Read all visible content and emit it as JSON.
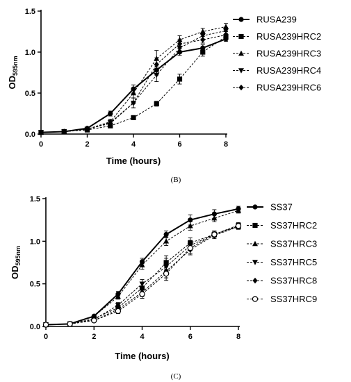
{
  "chart_data": [
    {
      "type": "line",
      "panel_label": "(B)",
      "xlabel": "Time (hours)",
      "ylabel_main": "OD",
      "ylabel_sub": "595nm",
      "xlim": [
        0,
        8
      ],
      "ylim": [
        0,
        1.5
      ],
      "xticks": [
        0,
        2,
        4,
        6,
        8
      ],
      "yticks": [
        0.0,
        0.5,
        1.0,
        1.5
      ],
      "ytick_labels": [
        "0.0",
        "0.5",
        "1.0",
        "1.5"
      ],
      "legend_position": "right",
      "x": [
        0,
        1,
        2,
        3,
        4,
        5,
        6,
        7,
        8
      ],
      "series": [
        {
          "name": "RUSA239",
          "marker": "circle",
          "dash": "solid",
          "width": 2,
          "values": [
            0.02,
            0.03,
            0.07,
            0.25,
            0.55,
            0.78,
            1.0,
            1.05,
            1.16
          ],
          "errors": [
            0.01,
            0.01,
            0.01,
            0.03,
            0.05,
            0.06,
            0.04,
            0.04,
            0.03
          ]
        },
        {
          "name": "RUSA239HRC2",
          "marker": "square",
          "dash": "dashed",
          "width": 1,
          "values": [
            0.02,
            0.03,
            0.05,
            0.1,
            0.2,
            0.37,
            0.67,
            1.0,
            1.19
          ],
          "errors": [
            0.01,
            0.01,
            0.01,
            0.02,
            0.02,
            0.03,
            0.06,
            0.05,
            0.04
          ]
        },
        {
          "name": "RUSA239HRC3",
          "marker": "triangle-up",
          "dash": "dashed",
          "width": 1,
          "values": [
            0.02,
            0.03,
            0.06,
            0.15,
            0.5,
            0.92,
            1.15,
            1.25,
            1.31
          ],
          "errors": [
            0.01,
            0.01,
            0.01,
            0.03,
            0.06,
            0.1,
            0.05,
            0.04,
            0.04
          ]
        },
        {
          "name": "RUSA239HRC4",
          "marker": "triangle-down",
          "dash": "dashed",
          "width": 1,
          "values": [
            0.02,
            0.03,
            0.06,
            0.14,
            0.38,
            0.72,
            1.05,
            1.2,
            1.26
          ],
          "errors": [
            0.01,
            0.01,
            0.01,
            0.03,
            0.06,
            0.08,
            0.05,
            0.04,
            0.04
          ]
        },
        {
          "name": "RUSA239HRC6",
          "marker": "diamond",
          "dash": "dashed",
          "width": 1,
          "values": [
            0.02,
            0.03,
            0.06,
            0.13,
            0.38,
            0.85,
            1.1,
            1.15,
            1.21
          ],
          "errors": [
            0.01,
            0.01,
            0.01,
            0.03,
            0.06,
            0.08,
            0.05,
            0.04,
            0.04
          ]
        }
      ]
    },
    {
      "type": "line",
      "panel_label": "(C)",
      "xlabel": "Time (hours)",
      "ylabel_main": "OD",
      "ylabel_sub": "595nm",
      "xlim": [
        0,
        8
      ],
      "ylim": [
        0,
        1.5
      ],
      "xticks": [
        0,
        2,
        4,
        6,
        8
      ],
      "yticks": [
        0.0,
        0.5,
        1.0,
        1.5
      ],
      "ytick_labels": [
        "0.0",
        "0.5",
        "1.0",
        "1.5"
      ],
      "legend_position": "right",
      "x": [
        0,
        1,
        2,
        3,
        4,
        5,
        6,
        7,
        8
      ],
      "series": [
        {
          "name": "SS37",
          "marker": "circle",
          "dash": "solid",
          "width": 2,
          "values": [
            0.02,
            0.03,
            0.12,
            0.38,
            0.76,
            1.08,
            1.25,
            1.32,
            1.38
          ],
          "errors": [
            0.01,
            0.01,
            0.01,
            0.03,
            0.04,
            0.04,
            0.06,
            0.05,
            0.03
          ]
        },
        {
          "name": "SS37HRC2",
          "marker": "square",
          "dash": "dashed",
          "width": 1,
          "values": [
            0.02,
            0.03,
            0.09,
            0.22,
            0.45,
            0.75,
            0.98,
            1.08,
            1.17
          ],
          "errors": [
            0.01,
            0.01,
            0.01,
            0.03,
            0.06,
            0.08,
            0.06,
            0.04,
            0.03
          ]
        },
        {
          "name": "SS37HRC3",
          "marker": "triangle-up",
          "dash": "dashed",
          "width": 1,
          "values": [
            0.02,
            0.03,
            0.12,
            0.35,
            0.72,
            1.0,
            1.18,
            1.27,
            1.36
          ],
          "errors": [
            0.01,
            0.01,
            0.01,
            0.03,
            0.05,
            0.05,
            0.05,
            0.04,
            0.03
          ]
        },
        {
          "name": "SS37HRC5",
          "marker": "triangle-down",
          "dash": "dashed",
          "width": 1,
          "values": [
            0.02,
            0.03,
            0.08,
            0.25,
            0.5,
            0.7,
            0.95,
            1.08,
            1.19
          ],
          "errors": [
            0.01,
            0.01,
            0.01,
            0.03,
            0.05,
            0.1,
            0.06,
            0.04,
            0.03
          ]
        },
        {
          "name": "SS37HRC8",
          "marker": "diamond",
          "dash": "dashed",
          "width": 1,
          "values": [
            0.02,
            0.03,
            0.07,
            0.2,
            0.4,
            0.65,
            0.9,
            1.07,
            1.17
          ],
          "errors": [
            0.01,
            0.01,
            0.01,
            0.03,
            0.05,
            0.08,
            0.06,
            0.04,
            0.03
          ]
        },
        {
          "name": "SS37HRC9",
          "marker": "circle-open",
          "dash": "dashed",
          "width": 1,
          "values": [
            0.02,
            0.03,
            0.07,
            0.18,
            0.38,
            0.62,
            0.92,
            1.08,
            1.18
          ],
          "errors": [
            0.01,
            0.01,
            0.01,
            0.03,
            0.05,
            0.08,
            0.06,
            0.04,
            0.03
          ]
        }
      ]
    }
  ]
}
